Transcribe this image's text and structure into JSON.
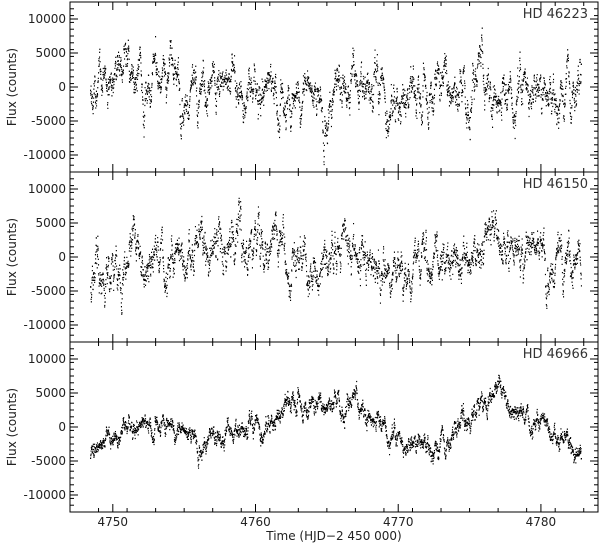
{
  "figure": {
    "xlabel": "Time (HJD−2 450 000)",
    "x_ticks": [
      4750,
      4760,
      4770,
      4780
    ]
  },
  "chart_data": [
    {
      "type": "scatter",
      "title": "HD 46223",
      "ylabel": "Flux (counts)",
      "xlim": [
        4747,
        4784
      ],
      "ylim": [
        -12500,
        12500
      ],
      "y_ticks": [
        -10000,
        -5000,
        0,
        5000,
        10000
      ],
      "x_range_data": [
        4748.4,
        4782.8
      ],
      "series": [
        {
          "x": [
            4748.5,
            4749.5,
            4750.5,
            4751.5,
            4752.5,
            4753.5,
            4754.5,
            4755.5,
            4756.5,
            4757.5,
            4758.5,
            4759.5,
            4760.5,
            4761.5,
            4762.5,
            4763.5,
            4764.5,
            4765.5,
            4766.5,
            4767.5,
            4768.5,
            4769.5,
            4770.5,
            4771.5,
            4772.5,
            4773.5,
            4774.5,
            4775.5,
            4776.5,
            4777.5,
            4778.5,
            4779.5,
            4780.5,
            4781.5,
            4782.5
          ],
          "y": [
            -2000,
            1000,
            3000,
            -1000,
            0,
            2000,
            1500,
            0,
            -500,
            1000,
            2000,
            0,
            500,
            -1000,
            -2000,
            1000,
            -500,
            0,
            1500,
            500,
            0,
            -1000,
            -500,
            -1000,
            1000,
            500,
            1000,
            2000,
            -500,
            -1500,
            0,
            500,
            -1000,
            -500,
            1500
          ]
        }
      ]
    },
    {
      "type": "scatter",
      "title": "HD 46150",
      "ylabel": "Flux (counts)",
      "xlim": [
        4747,
        4784
      ],
      "ylim": [
        -12500,
        12500
      ],
      "y_ticks": [
        -10000,
        -5000,
        0,
        5000,
        10000
      ],
      "x_range_data": [
        4748.4,
        4782.8
      ],
      "series": [
        {
          "x": [
            4748.5,
            4749.5,
            4750.5,
            4751.5,
            4752.5,
            4753.5,
            4754.5,
            4755.5,
            4756.5,
            4757.5,
            4758.5,
            4759.5,
            4760.5,
            4761.5,
            4762.5,
            4763.5,
            4764.5,
            4765.5,
            4766.5,
            4767.5,
            4768.5,
            4769.5,
            4770.5,
            4771.5,
            4772.5,
            4773.5,
            4774.5,
            4775.5,
            4776.5,
            4777.5,
            4778.5,
            4779.5,
            4780.5,
            4781.5,
            4782.5
          ],
          "y": [
            -3000,
            0,
            -2000,
            -1000,
            0,
            500,
            -1000,
            1000,
            0,
            2000,
            3000,
            3500,
            1500,
            -500,
            -1000,
            0,
            -1500,
            -500,
            500,
            0,
            -500,
            -1000,
            -2000,
            -1500,
            -500,
            0,
            500,
            1000,
            1500,
            2000,
            1500,
            2500,
            1000,
            0,
            -1000
          ]
        }
      ]
    },
    {
      "type": "scatter",
      "title": "HD 46966",
      "ylabel": "Flux (counts)",
      "xlim": [
        4747,
        4784
      ],
      "ylim": [
        -12500,
        12500
      ],
      "y_ticks": [
        -10000,
        -5000,
        0,
        5000,
        10000
      ],
      "x_range_data": [
        4748.4,
        4782.8
      ],
      "series": [
        {
          "x": [
            4748.5,
            4749.5,
            4750.5,
            4751.5,
            4752.5,
            4753.5,
            4754.5,
            4755.5,
            4756.5,
            4757.5,
            4758.5,
            4759.5,
            4760.5,
            4761.5,
            4762.5,
            4763.5,
            4764.5,
            4765.5,
            4766.5,
            4767.5,
            4768.5,
            4769.5,
            4770.5,
            4771.5,
            4772.5,
            4773.5,
            4774.5,
            4775.5,
            4776.5,
            4777.5,
            4778.5,
            4779.5,
            4780.5,
            4781.5,
            4782.5
          ],
          "y": [
            -4000,
            -1500,
            0,
            500,
            0,
            1000,
            0,
            -500,
            -1500,
            -1000,
            -500,
            0,
            500,
            2000,
            4000,
            3500,
            3000,
            4500,
            4000,
            2500,
            1000,
            -1000,
            -2500,
            -2000,
            -3000,
            -1500,
            1000,
            3500,
            4500,
            4000,
            2000,
            1000,
            0,
            -2500,
            -4000
          ]
        }
      ]
    }
  ]
}
